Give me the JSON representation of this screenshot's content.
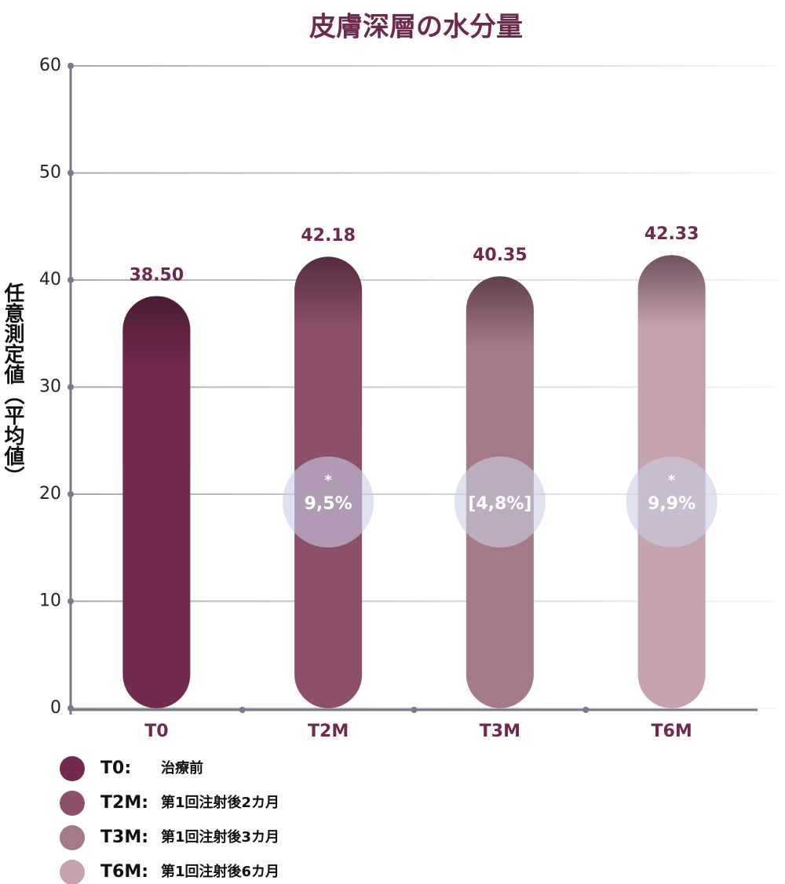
{
  "chart_data": {
    "type": "bar",
    "title": "皮膚深層の水分量",
    "y_label": "任意測定値（平均値）",
    "categories": [
      "T0",
      "T2M",
      "T3M",
      "T6M"
    ],
    "values": [
      38.5,
      42.18,
      40.35,
      42.33
    ],
    "value_labels": [
      "38.50",
      "42.18",
      "40.35",
      "42.33"
    ],
    "colors": [
      "#722a4f",
      "#8c506a",
      "#a57a88",
      "#c4a2ae"
    ],
    "significance": [
      null,
      "*",
      null,
      "*"
    ],
    "change_labels": [
      null,
      "9,5%",
      "[4,8%]",
      "9,9%"
    ],
    "ylim": [
      0,
      60
    ],
    "yticks": [
      0,
      10,
      20,
      30,
      40,
      50,
      60
    ],
    "grid": true,
    "legend": [
      {
        "key": "T0:",
        "text": "治療前"
      },
      {
        "key": "T2M:",
        "text": "第1回注射後2カ月"
      },
      {
        "key": "T3M:",
        "text": "第1回注射後3カ月"
      },
      {
        "key": "T6M:",
        "text": "第1回注射後6カ月"
      }
    ]
  }
}
